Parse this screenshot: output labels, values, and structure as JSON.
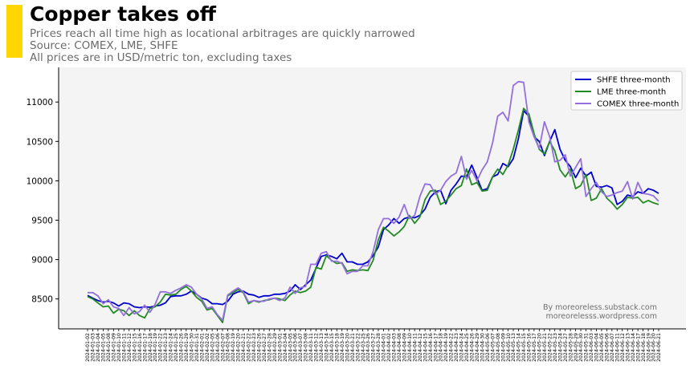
{
  "header": {
    "title": "Copper takes off",
    "subtitle_1": "Prices reach all time high as locational arbitrages are quickly narrowed",
    "subtitle_2": "Source: COMEX, LME, SHFE",
    "subtitle_3": "All prices are in USD/metric ton, excluding taxes",
    "accent_color": "#FFD700"
  },
  "credit": {
    "line_1": "By moreoreless.substack.com",
    "line_2": "moreorelesss.wordpress.com"
  },
  "chart_data": {
    "type": "line",
    "title": "Copper takes off",
    "xlabel": "",
    "ylabel": "",
    "ylim": [
      8120,
      11440
    ],
    "yticks": [
      8500,
      9000,
      9500,
      10000,
      10500,
      11000
    ],
    "legend_position": "top-right",
    "grid": false,
    "dates": [
      "2024-01-02",
      "2024-01-03",
      "2024-01-04",
      "2024-01-05",
      "2024-01-08",
      "2024-01-09",
      "2024-01-10",
      "2024-01-11",
      "2024-01-12",
      "2024-01-15",
      "2024-01-16",
      "2024-01-17",
      "2024-01-18",
      "2024-01-19",
      "2024-01-22",
      "2024-01-23",
      "2024-01-24",
      "2024-01-25",
      "2024-01-26",
      "2024-01-29",
      "2024-01-30",
      "2024-01-31",
      "2024-02-01",
      "2024-02-02",
      "2024-02-05",
      "2024-02-06",
      "2024-02-07",
      "2024-02-08",
      "2024-02-19",
      "2024-02-20",
      "2024-02-21",
      "2024-02-22",
      "2024-02-23",
      "2024-02-26",
      "2024-02-27",
      "2024-02-28",
      "2024-02-29",
      "2024-03-01",
      "2024-03-04",
      "2024-03-05",
      "2024-03-06",
      "2024-03-07",
      "2024-03-08",
      "2024-03-11",
      "2024-03-12",
      "2024-03-13",
      "2024-03-14",
      "2024-03-15",
      "2024-03-18",
      "2024-03-19",
      "2024-03-20",
      "2024-03-21",
      "2024-03-22",
      "2024-03-25",
      "2024-03-26",
      "2024-03-27",
      "2024-03-28",
      "2024-04-01",
      "2024-04-02",
      "2024-04-03",
      "2024-04-08",
      "2024-04-09",
      "2024-04-10",
      "2024-04-11",
      "2024-04-12",
      "2024-04-15",
      "2024-04-16",
      "2024-04-17",
      "2024-04-18",
      "2024-04-19",
      "2024-04-22",
      "2024-04-23",
      "2024-04-24",
      "2024-04-25",
      "2024-04-26",
      "2024-04-29",
      "2024-04-30",
      "2024-05-06",
      "2024-05-07",
      "2024-05-08",
      "2024-05-09",
      "2024-05-10",
      "2024-05-13",
      "2024-05-14",
      "2024-05-15",
      "2024-05-16",
      "2024-05-17",
      "2024-05-20",
      "2024-05-21",
      "2024-05-22",
      "2024-05-23",
      "2024-05-24",
      "2024-05-27",
      "2024-05-28",
      "2024-05-29",
      "2024-05-30",
      "2024-05-31",
      "2024-06-03",
      "2024-06-04",
      "2024-06-05",
      "2024-06-06",
      "2024-06-07",
      "2024-06-11",
      "2024-06-12",
      "2024-06-13",
      "2024-06-14",
      "2024-06-17",
      "2024-06-18",
      "2024-06-19",
      "2024-06-20",
      "2024-06-21"
    ],
    "series": [
      {
        "name": "SHFE three-month",
        "color": "#0000CD",
        "values": [
          8545,
          8510,
          8480,
          8460,
          8470,
          8450,
          8410,
          8450,
          8440,
          8400,
          8390,
          8400,
          8395,
          8410,
          8420,
          8450,
          8530,
          8540,
          8540,
          8560,
          8600,
          8560,
          8510,
          8490,
          8440,
          8440,
          8430,
          8470,
          8560,
          8590,
          8600,
          8560,
          8550,
          8520,
          8540,
          8540,
          8560,
          8560,
          8570,
          8600,
          8680,
          8620,
          8680,
          8740,
          8890,
          9040,
          9060,
          9040,
          9010,
          9080,
          8970,
          8970,
          8940,
          8940,
          8970,
          9050,
          9160,
          9380,
          9440,
          9520,
          9460,
          9520,
          9540,
          9530,
          9560,
          9640,
          9790,
          9860,
          9880,
          9710,
          9880,
          9960,
          10060,
          10050,
          10200,
          10040,
          9880,
          9900,
          10050,
          10080,
          10220,
          10180,
          10280,
          10540,
          10890,
          10820,
          10560,
          10500,
          10320,
          10500,
          10650,
          10400,
          10260,
          10180,
          10040,
          10160,
          10060,
          10110,
          9930,
          9920,
          9940,
          9910,
          9700,
          9740,
          9820,
          9800,
          9860,
          9840,
          9900,
          9880,
          9840
        ]
      },
      {
        "name": "LME three-month",
        "color": "#228B22",
        "values": [
          8530,
          8500,
          8450,
          8400,
          8410,
          8320,
          8370,
          8350,
          8290,
          8350,
          8290,
          8260,
          8380,
          8400,
          8460,
          8560,
          8550,
          8560,
          8620,
          8660,
          8600,
          8520,
          8470,
          8360,
          8380,
          8290,
          8200,
          8540,
          8580,
          8620,
          8580,
          8440,
          8480,
          8460,
          8480,
          8490,
          8510,
          8500,
          8480,
          8550,
          8600,
          8580,
          8600,
          8650,
          8900,
          8880,
          9050,
          8990,
          8950,
          8960,
          8850,
          8870,
          8860,
          8870,
          8860,
          8990,
          9250,
          9410,
          9360,
          9300,
          9350,
          9420,
          9560,
          9460,
          9540,
          9760,
          9870,
          9880,
          9700,
          9740,
          9820,
          9900,
          9940,
          10150,
          9950,
          9980,
          9870,
          9880,
          10050,
          10150,
          10080,
          10200,
          10400,
          10650,
          10920,
          10850,
          10600,
          10400,
          10340,
          10500,
          10380,
          10140,
          10050,
          10150,
          9900,
          9940,
          10080,
          9750,
          9780,
          9900,
          9780,
          9720,
          9640,
          9700,
          9790,
          9780,
          9790,
          9720,
          9750,
          9720,
          9700
        ]
      },
      {
        "name": "COMEX three-month",
        "color": "#9370DB",
        "values": [
          8580,
          8580,
          8540,
          8440,
          8490,
          8400,
          8380,
          8290,
          8390,
          8310,
          8340,
          8420,
          8330,
          8430,
          8590,
          8590,
          8570,
          8610,
          8640,
          8680,
          8650,
          8560,
          8500,
          8380,
          8400,
          8300,
          8230,
          8550,
          8600,
          8640,
          8590,
          8460,
          8480,
          8470,
          8470,
          8500,
          8510,
          8480,
          8510,
          8650,
          8570,
          8640,
          8660,
          8940,
          8940,
          9080,
          9100,
          8980,
          8980,
          8950,
          8820,
          8850,
          8850,
          8920,
          8920,
          9100,
          9380,
          9520,
          9520,
          9460,
          9540,
          9700,
          9520,
          9560,
          9800,
          9960,
          9950,
          9830,
          9880,
          9990,
          10060,
          10100,
          10310,
          10020,
          10130,
          10000,
          10140,
          10240,
          10480,
          10820,
          10870,
          10760,
          11210,
          11260,
          11250,
          10750,
          10560,
          10410,
          10750,
          10560,
          10240,
          10260,
          10330,
          10060,
          10170,
          10280,
          9800,
          9900,
          9980,
          9860,
          9800,
          9820,
          9850,
          9870,
          9990,
          9770,
          9980,
          9840,
          9830,
          9810,
          9740
        ]
      }
    ]
  }
}
